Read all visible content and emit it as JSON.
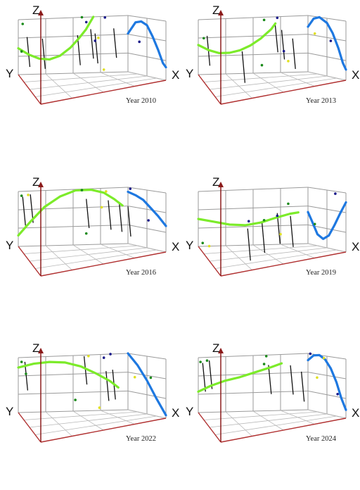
{
  "chart_data": [
    {
      "type": "scatter",
      "title": "Year 2010",
      "axes": {
        "x_label": "X",
        "y_label": "Y",
        "z_label": "Z"
      },
      "grid": true,
      "colors": {
        "green_curve": "#7CEB2A",
        "blue_curve": "#1E78E0",
        "drop_line": "#111111",
        "z_axis": "#8B1A1A",
        "floor_axis": "#B03030",
        "grid": "#9A9A9A"
      },
      "green_curve": [
        [
          0.0,
          0.52
        ],
        [
          0.1,
          0.64
        ],
        [
          0.2,
          0.72
        ],
        [
          0.3,
          0.74
        ],
        [
          0.4,
          0.68
        ],
        [
          0.5,
          0.54
        ],
        [
          0.58,
          0.38
        ],
        [
          0.65,
          0.22
        ],
        [
          0.72,
          0.0
        ]
      ],
      "blue_curve": [
        [
          0.0,
          0.32
        ],
        [
          0.2,
          0.1
        ],
        [
          0.35,
          0.07
        ],
        [
          0.5,
          0.12
        ],
        [
          0.65,
          0.3
        ],
        [
          0.8,
          0.52
        ],
        [
          0.92,
          0.72
        ],
        [
          1.0,
          0.78
        ]
      ],
      "drop_lines": [
        [
          0.08,
          0.32
        ],
        [
          0.22,
          0.36
        ],
        [
          0.54,
          0.32
        ],
        [
          0.66,
          0.22
        ],
        [
          0.7,
          0.3
        ],
        [
          0.87,
          0.22
        ]
      ],
      "points": [
        {
          "x": 0.03,
          "y": 0.58,
          "color": "#1a8a1a"
        },
        {
          "x": 0.58,
          "y": 0.0,
          "color": "#1a8a1a"
        },
        {
          "x": 0.62,
          "y": 0.09,
          "color": "#1a1a8a"
        },
        {
          "x": 0.79,
          "y": 0.02,
          "color": "#1a1a8a"
        },
        {
          "x": 0.7,
          "y": 0.43,
          "color": "#1a1a8a"
        },
        {
          "x": 0.9,
          "y": 0.43,
          "color": "#1a1a8a"
        },
        {
          "x": 0.73,
          "y": 0.38,
          "color": "#e0e020"
        },
        {
          "x": 0.78,
          "y": 0.95,
          "color": "#e0e020"
        },
        {
          "x": 0.04,
          "y": 0.08,
          "color": "#1a8a1a"
        }
      ]
    },
    {
      "type": "scatter",
      "title": "Year 2013",
      "axes": {
        "x_label": "X",
        "y_label": "Y",
        "z_label": "Z"
      },
      "grid": true,
      "colors": {
        "green_curve": "#7CEB2A",
        "blue_curve": "#1E78E0",
        "drop_line": "#111111",
        "z_axis": "#8B1A1A",
        "floor_axis": "#B03030",
        "grid": "#9A9A9A"
      },
      "green_curve": [
        [
          0.0,
          0.46
        ],
        [
          0.1,
          0.56
        ],
        [
          0.2,
          0.62
        ],
        [
          0.3,
          0.62
        ],
        [
          0.4,
          0.58
        ],
        [
          0.5,
          0.5
        ],
        [
          0.6,
          0.38
        ],
        [
          0.7,
          0.22
        ],
        [
          0.74,
          0.12
        ]
      ],
      "blue_curve": [
        [
          0.0,
          0.2
        ],
        [
          0.15,
          0.04
        ],
        [
          0.3,
          0.0
        ],
        [
          0.5,
          0.08
        ],
        [
          0.65,
          0.24
        ],
        [
          0.8,
          0.48
        ],
        [
          0.92,
          0.72
        ],
        [
          1.0,
          0.82
        ]
      ],
      "drop_lines": [
        [
          0.08,
          0.3
        ],
        [
          0.4,
          0.6
        ],
        [
          0.7,
          0.12
        ],
        [
          0.76,
          0.24
        ],
        [
          0.86,
          0.4
        ]
      ],
      "points": [
        {
          "x": 0.05,
          "y": 0.34,
          "color": "#1a8a1a"
        },
        {
          "x": 0.6,
          "y": 0.05,
          "color": "#1a8a1a"
        },
        {
          "x": 0.72,
          "y": 0.02,
          "color": "#1a1a8a"
        },
        {
          "x": 0.78,
          "y": 0.62,
          "color": "#1a1a8a"
        },
        {
          "x": 0.88,
          "y": 0.3,
          "color": "#e0e020"
        },
        {
          "x": 0.95,
          "y": 0.38,
          "color": "#1a1a8a"
        },
        {
          "x": 0.58,
          "y": 0.86,
          "color": "#1a8a1a"
        },
        {
          "x": 0.82,
          "y": 0.8,
          "color": "#e0e020"
        }
      ]
    },
    {
      "type": "scatter",
      "title": "Year 2016",
      "axes": {
        "x_label": "X",
        "y_label": "Y",
        "z_label": "Z"
      },
      "grid": true,
      "colors": {
        "green_curve": "#7CEB2A",
        "blue_curve": "#1E78E0",
        "drop_line": "#111111",
        "z_axis": "#8B1A1A",
        "floor_axis": "#B03030",
        "grid": "#9A9A9A"
      },
      "green_curve": [
        [
          0.0,
          0.8
        ],
        [
          0.12,
          0.55
        ],
        [
          0.25,
          0.3
        ],
        [
          0.4,
          0.12
        ],
        [
          0.55,
          0.02
        ],
        [
          0.7,
          0.02
        ],
        [
          0.82,
          0.08
        ],
        [
          0.92,
          0.2
        ],
        [
          1.0,
          0.32
        ]
      ],
      "blue_curve": [
        [
          0.0,
          0.08
        ],
        [
          0.2,
          0.12
        ],
        [
          0.4,
          0.18
        ],
        [
          0.6,
          0.3
        ],
        [
          0.8,
          0.42
        ],
        [
          1.0,
          0.56
        ]
      ],
      "drop_lines": [
        [
          0.04,
          0.1
        ],
        [
          0.11,
          0.06
        ],
        [
          0.62,
          0.18
        ],
        [
          0.82,
          0.22
        ],
        [
          0.92,
          0.26
        ],
        [
          1.0,
          0.34
        ]
      ],
      "points": [
        {
          "x": 0.03,
          "y": 0.08,
          "color": "#1a8a1a"
        },
        {
          "x": 0.09,
          "y": 0.07,
          "color": "#e0e020"
        },
        {
          "x": 0.58,
          "y": 0.02,
          "color": "#1a8a1a"
        },
        {
          "x": 0.76,
          "y": 0.34,
          "color": "#e0e020"
        },
        {
          "x": 0.8,
          "y": 0.06,
          "color": "#e0e020"
        },
        {
          "x": 0.86,
          "y": 0.02,
          "color": "#1a1a8a"
        },
        {
          "x": 0.94,
          "y": 0.52,
          "color": "#1a1a8a"
        },
        {
          "x": 0.62,
          "y": 0.8,
          "color": "#1a8a1a"
        }
      ]
    },
    {
      "type": "scatter",
      "title": "Year 2019",
      "axes": {
        "x_label": "X",
        "y_label": "Y",
        "z_label": "Z"
      },
      "grid": true,
      "colors": {
        "green_curve": "#7CEB2A",
        "blue_curve": "#1E78E0",
        "drop_line": "#111111",
        "z_axis": "#8B1A1A",
        "floor_axis": "#B03030",
        "grid": "#9A9A9A"
      },
      "green_curve": [
        [
          0.0,
          0.5
        ],
        [
          0.15,
          0.56
        ],
        [
          0.3,
          0.62
        ],
        [
          0.45,
          0.64
        ],
        [
          0.6,
          0.6
        ],
        [
          0.75,
          0.52
        ],
        [
          0.88,
          0.46
        ],
        [
          0.96,
          0.44
        ]
      ],
      "blue_curve": [
        [
          0.0,
          0.44
        ],
        [
          0.1,
          0.58
        ],
        [
          0.25,
          0.8
        ],
        [
          0.4,
          0.86
        ],
        [
          0.55,
          0.78
        ],
        [
          0.7,
          0.58
        ],
        [
          0.85,
          0.36
        ],
        [
          1.0,
          0.16
        ]
      ],
      "drop_lines": [
        [
          0.45,
          0.7
        ],
        [
          0.58,
          0.58
        ],
        [
          0.72,
          0.44
        ],
        [
          0.84,
          0.5
        ]
      ],
      "points": [
        {
          "x": 0.04,
          "y": 0.94,
          "color": "#1a8a1a"
        },
        {
          "x": 0.1,
          "y": 1.0,
          "color": "#e0e020"
        },
        {
          "x": 0.46,
          "y": 0.57,
          "color": "#1a1a8a"
        },
        {
          "x": 0.6,
          "y": 0.56,
          "color": "#1a8a1a"
        },
        {
          "x": 0.72,
          "y": 0.49,
          "color": "#1a1a8a"
        },
        {
          "x": 0.75,
          "y": 0.82,
          "color": "#e0e020"
        },
        {
          "x": 0.82,
          "y": 0.28,
          "color": "#1a8a1a"
        },
        {
          "x": 0.88,
          "y": 0.63,
          "color": "#1a8a1a"
        },
        {
          "x": 0.97,
          "y": 0.04,
          "color": "#1a1a8a"
        }
      ]
    },
    {
      "type": "scatter",
      "title": "Year 2022",
      "axes": {
        "x_label": "X",
        "y_label": "Y",
        "z_label": "Z"
      },
      "grid": true,
      "colors": {
        "green_curve": "#7CEB2A",
        "blue_curve": "#1E78E0",
        "drop_line": "#111111",
        "z_axis": "#8B1A1A",
        "floor_axis": "#B03030",
        "grid": "#9A9A9A"
      },
      "green_curve": [
        [
          0.0,
          0.18
        ],
        [
          0.15,
          0.12
        ],
        [
          0.3,
          0.1
        ],
        [
          0.45,
          0.12
        ],
        [
          0.6,
          0.2
        ],
        [
          0.75,
          0.34
        ],
        [
          0.88,
          0.48
        ],
        [
          0.96,
          0.6
        ]
      ],
      "blue_curve": [
        [
          0.0,
          0.0
        ],
        [
          0.25,
          0.18
        ],
        [
          0.5,
          0.42
        ],
        [
          0.75,
          0.7
        ],
        [
          1.0,
          0.95
        ]
      ],
      "drop_lines": [
        [
          0.06,
          0.08
        ],
        [
          0.6,
          0.02
        ],
        [
          0.8,
          0.3
        ],
        [
          0.86,
          0.28
        ]
      ],
      "points": [
        {
          "x": 0.03,
          "y": 0.08,
          "color": "#1a8a1a"
        },
        {
          "x": 0.07,
          "y": 0.3,
          "color": "#1a8a1a"
        },
        {
          "x": 0.64,
          "y": 0.02,
          "color": "#e0e020"
        },
        {
          "x": 0.78,
          "y": 0.06,
          "color": "#1a1a8a"
        },
        {
          "x": 0.84,
          "y": 0.0,
          "color": "#1a1a8a"
        },
        {
          "x": 0.95,
          "y": 0.36,
          "color": "#1a8a1a"
        },
        {
          "x": 0.88,
          "y": 0.4,
          "color": "#e0e020"
        },
        {
          "x": 0.52,
          "y": 0.8,
          "color": "#1a8a1a"
        },
        {
          "x": 0.74,
          "y": 0.95,
          "color": "#e0e020"
        }
      ]
    },
    {
      "type": "scatter",
      "title": "Year 2024",
      "axes": {
        "x_label": "X",
        "y_label": "Y",
        "z_label": "Z"
      },
      "grid": true,
      "colors": {
        "green_curve": "#7CEB2A",
        "blue_curve": "#1E78E0",
        "drop_line": "#111111",
        "z_axis": "#8B1A1A",
        "floor_axis": "#B03030",
        "grid": "#9A9A9A"
      },
      "green_curve": [
        [
          0.0,
          0.62
        ],
        [
          0.12,
          0.52
        ],
        [
          0.25,
          0.44
        ],
        [
          0.4,
          0.38
        ],
        [
          0.55,
          0.3
        ],
        [
          0.7,
          0.22
        ],
        [
          0.8,
          0.16
        ]
      ],
      "blue_curve": [
        [
          0.0,
          0.12
        ],
        [
          0.15,
          0.02
        ],
        [
          0.3,
          0.0
        ],
        [
          0.45,
          0.06
        ],
        [
          0.6,
          0.2
        ],
        [
          0.75,
          0.42
        ],
        [
          0.88,
          0.68
        ],
        [
          1.0,
          0.86
        ]
      ],
      "drop_lines": [
        [
          0.04,
          0.1
        ],
        [
          0.1,
          0.06
        ],
        [
          0.64,
          0.18
        ],
        [
          0.84,
          0.2
        ],
        [
          0.94,
          0.32
        ]
      ],
      "points": [
        {
          "x": 0.02,
          "y": 0.08,
          "color": "#1a8a1a"
        },
        {
          "x": 0.08,
          "y": 0.06,
          "color": "#1a8a1a"
        },
        {
          "x": 0.62,
          "y": 0.02,
          "color": "#1a8a1a"
        },
        {
          "x": 0.6,
          "y": 0.16,
          "color": "#1a8a1a"
        },
        {
          "x": 0.86,
          "y": 0.0,
          "color": "#1a1a8a"
        },
        {
          "x": 0.92,
          "y": 0.04,
          "color": "#e0e020"
        },
        {
          "x": 0.89,
          "y": 0.4,
          "color": "#e0e020"
        },
        {
          "x": 0.98,
          "y": 0.62,
          "color": "#1a1a8a"
        }
      ]
    }
  ]
}
